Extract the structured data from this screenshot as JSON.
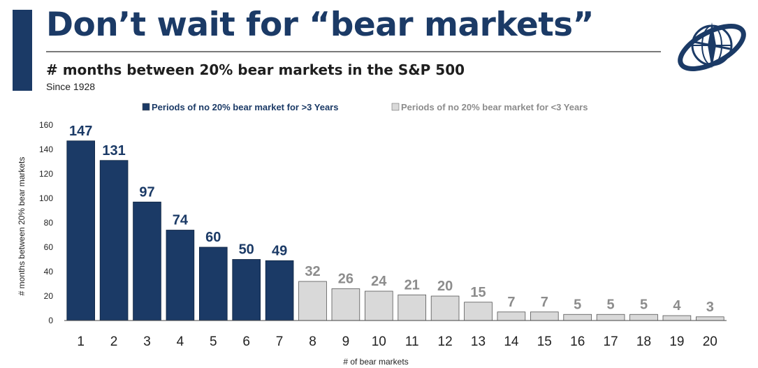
{
  "header": {
    "title": "Don’t wait for “bear markets”",
    "subtitle": "# months between 20% bear markets in the S&P 500",
    "since": "Since 1928",
    "logo": "compass-globe-logo"
  },
  "colors": {
    "accent": "#1b3a66",
    "long_bar": "#1b3a66",
    "short_bar": "#d9d9d9",
    "short_label": "#8c8c8c",
    "axis_text": "#222222"
  },
  "chart_data": {
    "type": "bar",
    "title": "# months between 20% bear markets in the S&P 500",
    "xlabel": "# of bear markets",
    "ylabel": "# months between 20% bear markets",
    "ylim": [
      0,
      160
    ],
    "yticks": [
      0,
      20,
      40,
      60,
      80,
      100,
      120,
      140,
      160
    ],
    "categories": [
      "1",
      "2",
      "3",
      "4",
      "5",
      "6",
      "7",
      "8",
      "9",
      "10",
      "11",
      "12",
      "13",
      "14",
      "15",
      "16",
      "17",
      "18",
      "19",
      "20"
    ],
    "values": [
      147,
      131,
      97,
      74,
      60,
      50,
      49,
      32,
      26,
      24,
      21,
      20,
      15,
      7,
      7,
      5,
      5,
      5,
      4,
      3
    ],
    "groups": [
      "long",
      "long",
      "long",
      "long",
      "long",
      "long",
      "long",
      "short",
      "short",
      "short",
      "short",
      "short",
      "short",
      "short",
      "short",
      "short",
      "short",
      "short",
      "short",
      "short"
    ],
    "legend": [
      {
        "key": "long",
        "label": "Periods of no 20% bear market for >3 Years"
      },
      {
        "key": "short",
        "label": "Periods of no 20% bear market for <3 Years"
      }
    ],
    "legend_position": "top-center",
    "grid": false
  }
}
